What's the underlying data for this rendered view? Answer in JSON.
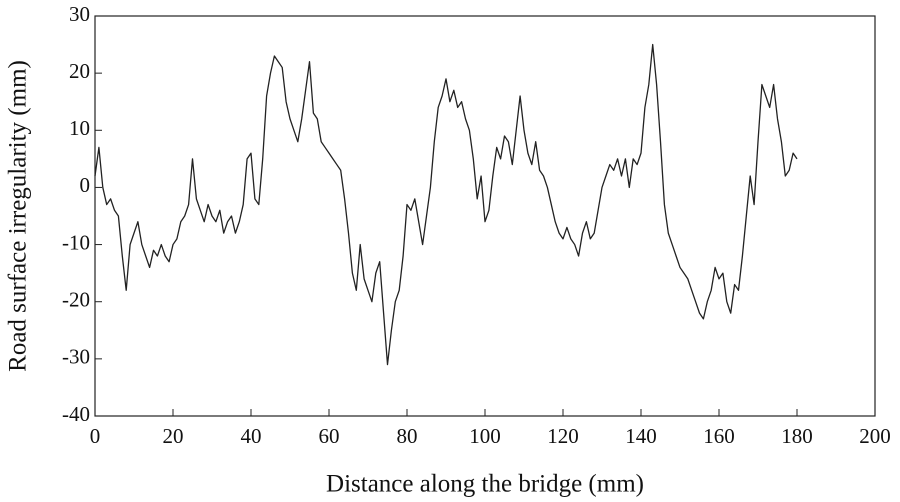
{
  "chart_data": {
    "type": "line",
    "xlabel": "Distance along the bridge (mm)",
    "ylabel": "Road surface irregularity (mm)",
    "xlim": [
      0,
      200
    ],
    "xticks": [
      0,
      20,
      40,
      60,
      80,
      100,
      120,
      140,
      160,
      180,
      200
    ],
    "ylim": [
      -40,
      30
    ],
    "yticks": [
      -40,
      -30,
      -20,
      -10,
      0,
      10,
      20,
      30
    ],
    "grid": false,
    "x": [
      0,
      1,
      2,
      3,
      4,
      5,
      6,
      7,
      8,
      9,
      10,
      11,
      12,
      13,
      14,
      15,
      16,
      17,
      18,
      19,
      20,
      21,
      22,
      23,
      24,
      25,
      26,
      27,
      28,
      29,
      30,
      31,
      32,
      33,
      34,
      35,
      36,
      37,
      38,
      39,
      40,
      41,
      42,
      43,
      44,
      45,
      46,
      47,
      48,
      49,
      50,
      51,
      52,
      53,
      54,
      55,
      56,
      57,
      58,
      59,
      60,
      61,
      62,
      63,
      64,
      65,
      66,
      67,
      68,
      69,
      70,
      71,
      72,
      73,
      74,
      75,
      76,
      77,
      78,
      79,
      80,
      81,
      82,
      83,
      84,
      85,
      86,
      87,
      88,
      89,
      90,
      91,
      92,
      93,
      94,
      95,
      96,
      97,
      98,
      99,
      100,
      101,
      102,
      103,
      104,
      105,
      106,
      107,
      108,
      109,
      110,
      111,
      112,
      113,
      114,
      115,
      116,
      117,
      118,
      119,
      120,
      121,
      122,
      123,
      124,
      125,
      126,
      127,
      128,
      129,
      130,
      131,
      132,
      133,
      134,
      135,
      136,
      137,
      138,
      139,
      140,
      141,
      142,
      143,
      144,
      145,
      146,
      147,
      148,
      149,
      150,
      151,
      152,
      153,
      154,
      155,
      156,
      157,
      158,
      159,
      160,
      161,
      162,
      163,
      164,
      165,
      166,
      167,
      168,
      169,
      170,
      171,
      172,
      173,
      174,
      175,
      176,
      177,
      178,
      179,
      180
    ],
    "series": [
      {
        "color": "#222222",
        "values": [
          2,
          7,
          0,
          -3,
          -2,
          -4,
          -5,
          -12,
          -18,
          -10,
          -8,
          -6,
          -10,
          -12,
          -14,
          -11,
          -12,
          -10,
          -12,
          -13,
          -10,
          -9,
          -6,
          -5,
          -3,
          5,
          -2,
          -4,
          -6,
          -3,
          -5,
          -6,
          -4,
          -8,
          -6,
          -5,
          -8,
          -6,
          -3,
          5,
          6,
          -2,
          -3,
          5,
          16,
          20,
          23,
          22,
          21,
          15,
          12,
          10,
          8,
          12,
          17,
          22,
          13,
          12,
          8,
          7,
          6,
          5,
          4,
          3,
          -2,
          -8,
          -15,
          -18,
          -10,
          -16,
          -18,
          -20,
          -15,
          -13,
          -22,
          -31,
          -25,
          -20,
          -18,
          -12,
          -3,
          -4,
          -2,
          -6,
          -10,
          -5,
          0,
          8,
          14,
          16,
          19,
          15,
          17,
          14,
          15,
          12,
          10,
          5,
          -2,
          2,
          -6,
          -4,
          2,
          7,
          5,
          9,
          8,
          4,
          10,
          16,
          10,
          6,
          4,
          8,
          3,
          2,
          0,
          -3,
          -6,
          -8,
          -9,
          -7,
          -9,
          -10,
          -12,
          -8,
          -6,
          -9,
          -8,
          -4,
          0,
          2,
          4,
          3,
          5,
          2,
          5,
          0,
          5,
          4,
          6,
          14,
          18,
          25,
          18,
          8,
          -3,
          -8,
          -10,
          -12,
          -14,
          -15,
          -16,
          -18,
          -20,
          -22,
          -23,
          -20,
          -18,
          -14,
          -16,
          -15,
          -20,
          -22,
          -17,
          -18,
          -12,
          -5,
          2,
          -3,
          8,
          18,
          16,
          14,
          18,
          12,
          8,
          2,
          3,
          6,
          5
        ]
      }
    ]
  }
}
